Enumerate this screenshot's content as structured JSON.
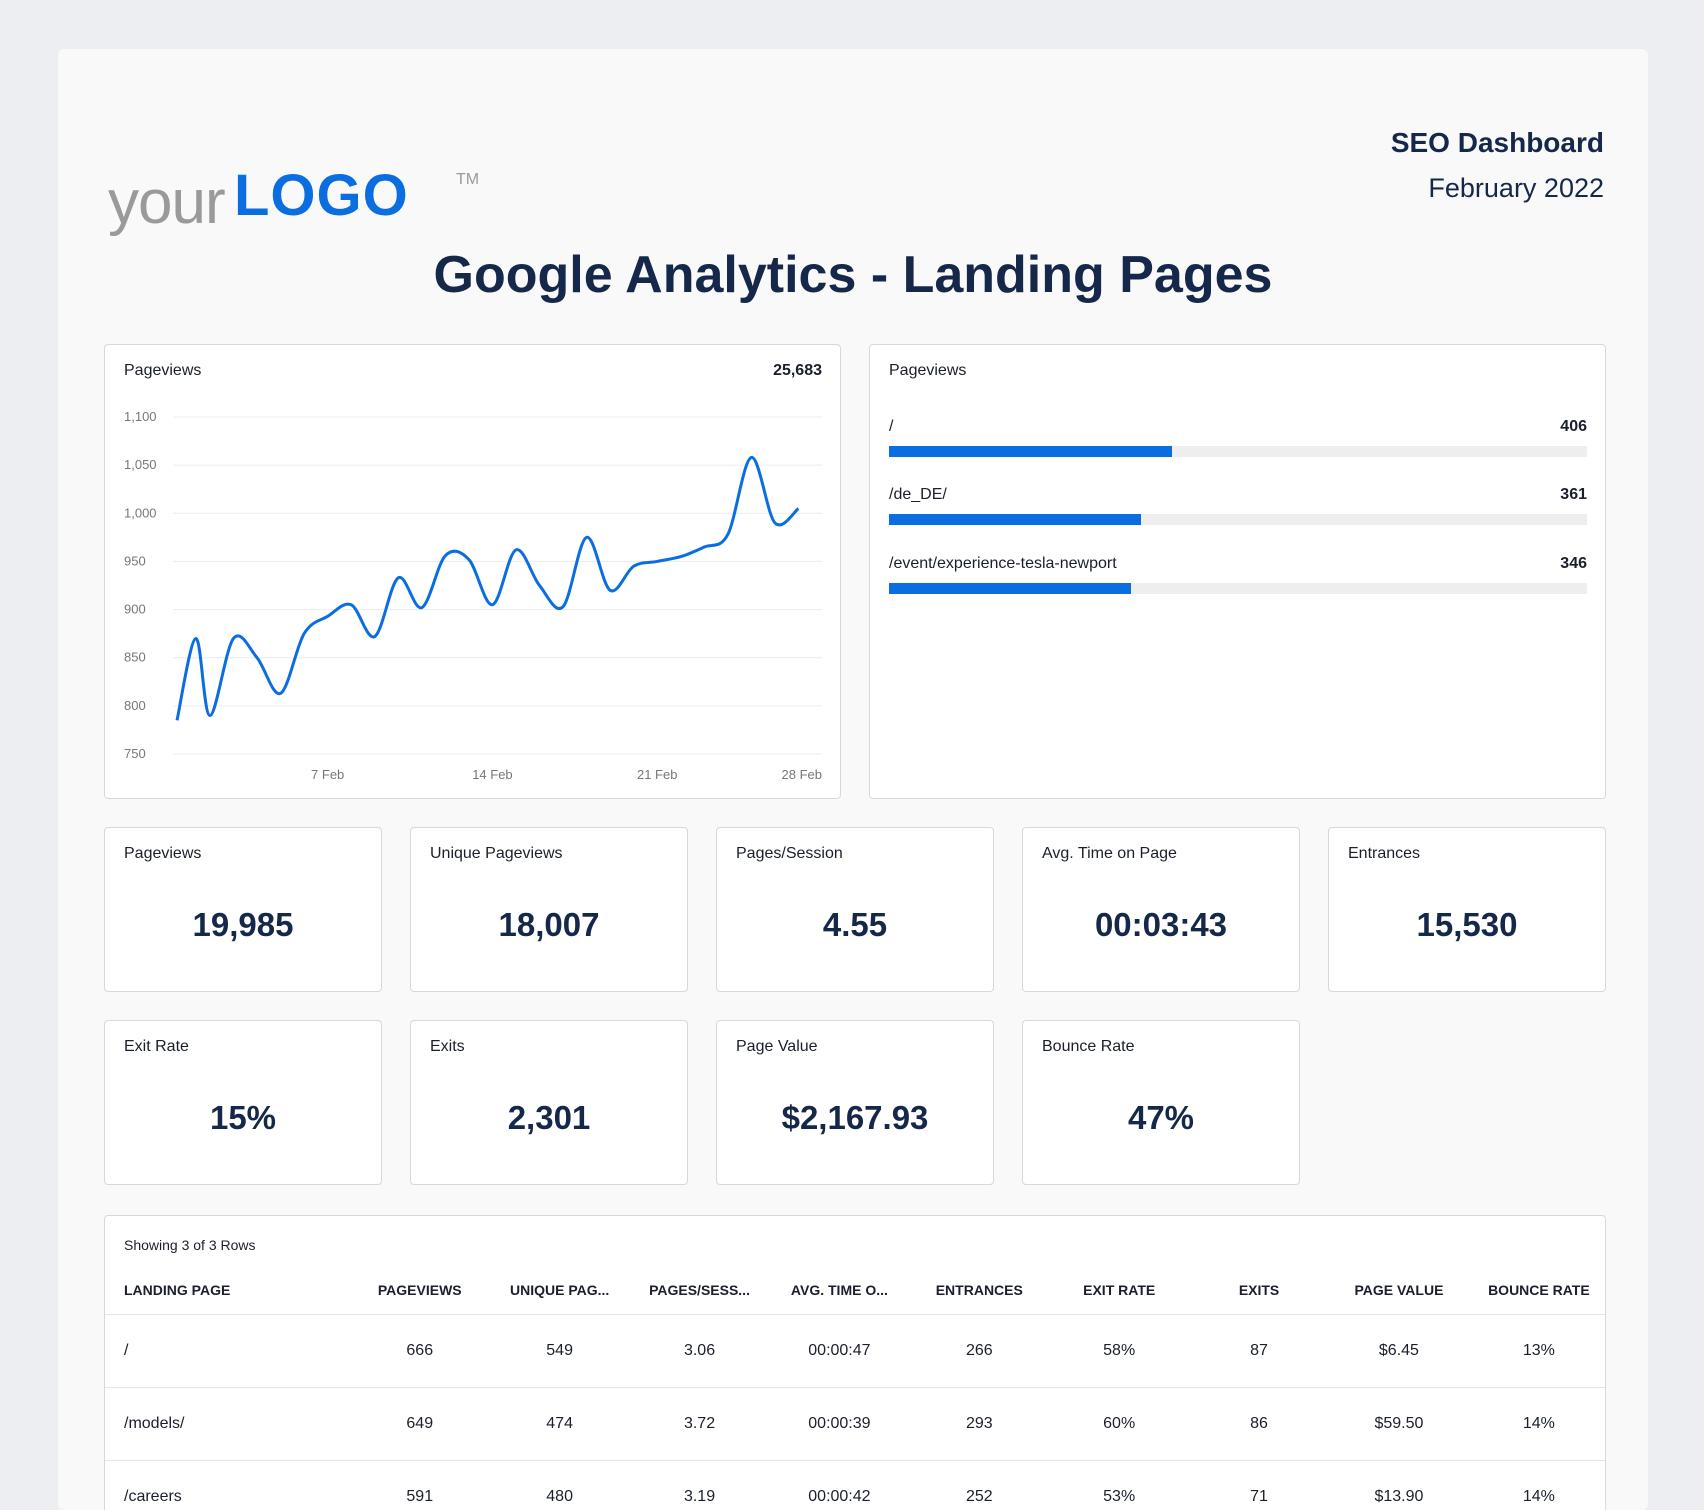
{
  "header": {
    "logo": {
      "prefix": "your",
      "mark": "LOGO",
      "tm": "TM"
    },
    "report_title": "SEO Dashboard",
    "report_date": "February 2022",
    "page_title": "Google Analytics - Landing Pages"
  },
  "colors": {
    "accent": "#0b6ee0",
    "text": "#15284a",
    "track": "#eeeeee"
  },
  "line_card": {
    "label": "Pageviews",
    "total": "25,683"
  },
  "bar_card": {
    "label": "Pageviews",
    "max": 1000,
    "items": [
      {
        "name": "/",
        "value": "406",
        "num": 406
      },
      {
        "name": "/de_DE/",
        "value": "361",
        "num": 361
      },
      {
        "name": "/event/experience-tesla-newport",
        "value": "346",
        "num": 346
      }
    ]
  },
  "kpis": [
    {
      "label": "Pageviews",
      "value": "19,985"
    },
    {
      "label": "Unique Pageviews",
      "value": "18,007"
    },
    {
      "label": "Pages/Session",
      "value": "4.55"
    },
    {
      "label": "Avg. Time on Page",
      "value": "00:03:43"
    },
    {
      "label": "Entrances",
      "value": "15,530"
    },
    {
      "label": "Exit Rate",
      "value": "15%"
    },
    {
      "label": "Exits",
      "value": "2,301"
    },
    {
      "label": "Page Value",
      "value": "$2,167.93"
    },
    {
      "label": "Bounce Rate",
      "value": "47%"
    }
  ],
  "table": {
    "caption": "Showing 3 of 3 Rows",
    "columns": [
      "LANDING PAGE",
      "PAGEVIEWS",
      "UNIQUE PAG...",
      "PAGES/SESS...",
      "AVG. TIME O...",
      "ENTRANCES",
      "EXIT RATE",
      "EXITS",
      "PAGE VALUE",
      "BOUNCE RATE"
    ],
    "rows": [
      [
        "/",
        "666",
        "549",
        "3.06",
        "00:00:47",
        "266",
        "58%",
        "87",
        "$6.45",
        "13%"
      ],
      [
        "/models/",
        "649",
        "474",
        "3.72",
        "00:00:39",
        "293",
        "60%",
        "86",
        "$59.50",
        "14%"
      ],
      [
        "/careers",
        "591",
        "480",
        "3.19",
        "00:00:42",
        "252",
        "53%",
        "71",
        "$13.90",
        "14%"
      ]
    ]
  },
  "chart_data": {
    "type": "line",
    "title": "Pageviews",
    "ylim": [
      750,
      1100
    ],
    "y_ticks": [
      "750",
      "800",
      "850",
      "900",
      "950",
      "1,000",
      "1,050",
      "1,100"
    ],
    "x_ticks": [
      "7 Feb",
      "14 Feb",
      "21 Feb",
      "28 Feb"
    ],
    "grid": true,
    "series": [
      {
        "values": [
          {
            "x": "1 Feb",
            "y": 785
          },
          {
            "x": "1 Feb",
            "y": 870
          },
          {
            "x": "2 Feb",
            "y": 790
          },
          {
            "x": "3 Feb",
            "y": 870
          },
          {
            "x": "4 Feb",
            "y": 850
          },
          {
            "x": "5 Feb",
            "y": 813
          },
          {
            "x": "6 Feb",
            "y": 875
          },
          {
            "x": "7 Feb",
            "y": 893
          },
          {
            "x": "8 Feb",
            "y": 905
          },
          {
            "x": "9 Feb",
            "y": 872
          },
          {
            "x": "10 Feb",
            "y": 933
          },
          {
            "x": "11 Feb",
            "y": 902
          },
          {
            "x": "12 Feb",
            "y": 956
          },
          {
            "x": "13 Feb",
            "y": 952
          },
          {
            "x": "14 Feb",
            "y": 905
          },
          {
            "x": "15 Feb",
            "y": 962
          },
          {
            "x": "16 Feb",
            "y": 925
          },
          {
            "x": "17 Feb",
            "y": 903
          },
          {
            "x": "18 Feb",
            "y": 975
          },
          {
            "x": "19 Feb",
            "y": 920
          },
          {
            "x": "20 Feb",
            "y": 945
          },
          {
            "x": "21 Feb",
            "y": 950
          },
          {
            "x": "22 Feb",
            "y": 955
          },
          {
            "x": "23 Feb",
            "y": 965
          },
          {
            "x": "24 Feb",
            "y": 978
          },
          {
            "x": "25 Feb",
            "y": 1058
          },
          {
            "x": "26 Feb",
            "y": 990
          },
          {
            "x": "27 Feb",
            "y": 1005
          }
        ]
      }
    ]
  }
}
